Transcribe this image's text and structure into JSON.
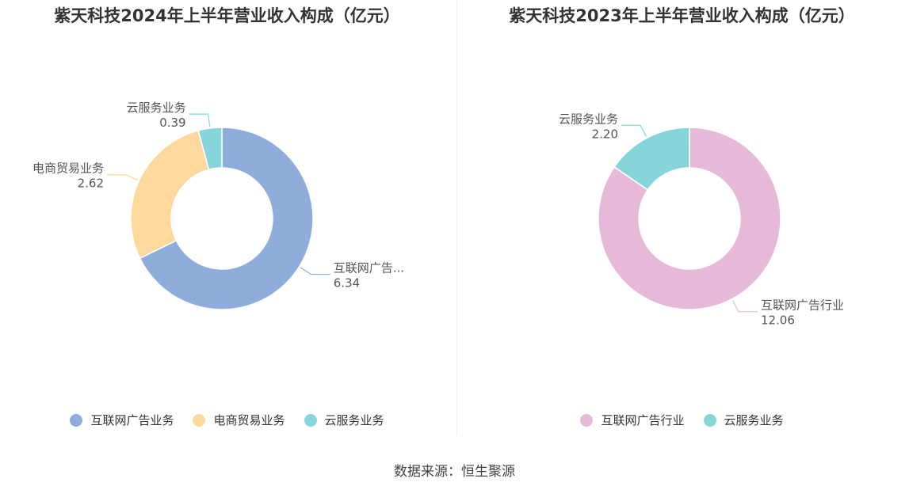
{
  "source": "数据来源：恒生聚源",
  "chart_data": [
    {
      "type": "pie",
      "title": "紫天科技2024年上半年营业收入构成（亿元）",
      "categories": [
        "互联网广告业务",
        "电商贸易业务",
        "云服务业务"
      ],
      "values": [
        6.34,
        2.62,
        0.39
      ],
      "value_labels": [
        "6.34",
        "2.62",
        "0.39"
      ],
      "slice_labels": [
        "互联网广告...",
        "电商贸易业务",
        "云服务业务"
      ],
      "colors": [
        "#8fadda",
        "#fed89c",
        "#85d5db"
      ],
      "legend": "bottom"
    },
    {
      "type": "pie",
      "title": "紫天科技2023年上半年营业收入构成（亿元）",
      "categories": [
        "互联网广告行业",
        "云服务业务"
      ],
      "values": [
        12.06,
        2.2
      ],
      "value_labels": [
        "12.06",
        "2.20"
      ],
      "slice_labels": [
        "互联网广告行业",
        "云服务业务"
      ],
      "colors": [
        "#e6b9d9",
        "#85d5db"
      ],
      "legend": "bottom"
    }
  ]
}
